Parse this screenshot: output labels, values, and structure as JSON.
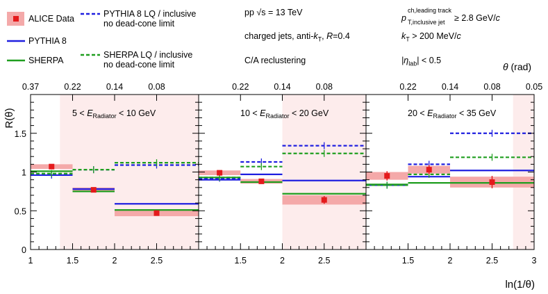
{
  "chart_data": {
    "type": "line",
    "title": "",
    "xlabel": "ln(1/θ)",
    "ylabel": "R(θ)",
    "top_axis_label": "θ (rad)",
    "ylim": [
      0,
      2
    ],
    "grid": false,
    "y_ticks": [
      "0",
      "0.5",
      "1",
      "1.5"
    ],
    "legend": [
      {
        "name": "ALICE Data",
        "style": "data",
        "color": "#e41a1c"
      },
      {
        "name": "PYTHIA 8 LQ / inclusive",
        "name_line2": "no dead-cone limit",
        "style": "dashed",
        "color": "#1f1fe0"
      },
      {
        "name": "PYTHIA 8",
        "style": "solid",
        "color": "#1f1fe0"
      },
      {
        "name": "SHERPA",
        "style": "solid",
        "color": "#1f9e1f"
      },
      {
        "name": "SHERPA LQ / inclusive",
        "name_line2": "no dead-cone limit",
        "style": "dashed",
        "color": "#1f9e1f"
      }
    ],
    "info": {
      "line1": "pp √s = 13 TeV",
      "line2_prefix": "charged jets, anti-",
      "line2_kt": "k",
      "line2_kt_sub": "T",
      "line2_suffix": ", ",
      "line2_R": "R",
      "line2_end": "=0.4",
      "line3": "C/A reclustering",
      "cut1_p": "p",
      "cut1_sup": "ch,leading track",
      "cut1_sub": "T,inclusive jet",
      "cut1_rel": " ≥ 2.8 GeV/",
      "cut1_c": "c",
      "cut2_k": "k",
      "cut2_sub": "T",
      "cut2_rel": " > 200 MeV/",
      "cut2_c": "c",
      "cut3_eta": "|η",
      "cut3_sub": "lab",
      "cut3_rel": "| < 0.5"
    },
    "panels": [
      {
        "label_pre": "5 < ",
        "label_E": "E",
        "label_sub": "Radiator",
        "label_post": " < 10 GeV",
        "xlim": [
          1,
          3
        ],
        "x_ticks": [
          "1",
          "1.5",
          "2",
          "2.5"
        ],
        "top_ticks": [
          "0.37",
          "0.22",
          "0.14",
          "0.08"
        ],
        "top_tick_positions": [
          1.0,
          1.5,
          2.0,
          2.5
        ],
        "shaded": [
          [
            1.35,
            3.0
          ]
        ],
        "bin_edges": [
          1,
          1.5,
          2,
          3
        ],
        "data": {
          "x": [
            1.25,
            1.75,
            2.5
          ],
          "y": [
            1.07,
            0.77,
            0.47
          ],
          "err": [
            0.02,
            0.02,
            0.03
          ],
          "sys": [
            0.03,
            0.03,
            0.04
          ]
        },
        "pythia": [
          0.96,
          0.78,
          0.59
        ],
        "sherpa": [
          1.01,
          0.75,
          0.51
        ],
        "pythia_lq": [
          0.96,
          1.03,
          1.09
        ],
        "sherpa_lq": [
          0.98,
          1.03,
          1.12
        ]
      },
      {
        "label_pre": "10 < ",
        "label_E": "E",
        "label_sub": "Radiator",
        "label_post": " < 20 GeV",
        "xlim": [
          1,
          3
        ],
        "x_ticks": [
          "1.5",
          "2",
          "2.5"
        ],
        "top_ticks": [
          "0.22",
          "0.14",
          "0.08"
        ],
        "top_tick_positions": [
          1.5,
          2.0,
          2.5
        ],
        "shaded": [
          [
            2.0,
            3.0
          ]
        ],
        "bin_edges": [
          1,
          1.5,
          2,
          3
        ],
        "data": {
          "x": [
            1.25,
            1.75,
            2.5
          ],
          "y": [
            0.99,
            0.88,
            0.64
          ],
          "err": [
            0.02,
            0.02,
            0.05
          ],
          "sys": [
            0.03,
            0.03,
            0.06
          ]
        },
        "pythia": [
          0.9,
          0.97,
          0.89
        ],
        "sherpa": [
          0.93,
          0.87,
          0.72
        ],
        "pythia_lq": [
          0.92,
          1.13,
          1.34
        ],
        "sherpa_lq": [
          0.93,
          1.07,
          1.24
        ]
      },
      {
        "label_pre": "20 < ",
        "label_E": "E",
        "label_sub": "Radiator",
        "label_post": " < 35 GeV",
        "xlim": [
          1,
          3
        ],
        "x_ticks": [
          "1.5",
          "2",
          "2.5",
          "3"
        ],
        "top_ticks": [
          "0.22",
          "0.14",
          "0.08",
          "0.05"
        ],
        "top_tick_positions": [
          1.5,
          2.0,
          2.5,
          3.0
        ],
        "shaded": [
          [
            2.75,
            3.0
          ]
        ],
        "bin_edges": [
          1,
          1.5,
          2,
          3
        ],
        "data": {
          "x": [
            1.25,
            1.75,
            2.5
          ],
          "y": [
            0.95,
            1.03,
            0.87
          ],
          "err": [
            0.06,
            0.06,
            0.08
          ],
          "sys": [
            0.05,
            0.05,
            0.07
          ]
        },
        "pythia": [
          0.83,
          0.94,
          1.02
        ],
        "sherpa": [
          0.84,
          0.86,
          0.86
        ],
        "pythia_lq": [
          0.83,
          1.1,
          1.5
        ],
        "sherpa_lq": [
          0.83,
          0.97,
          1.19
        ]
      }
    ]
  }
}
